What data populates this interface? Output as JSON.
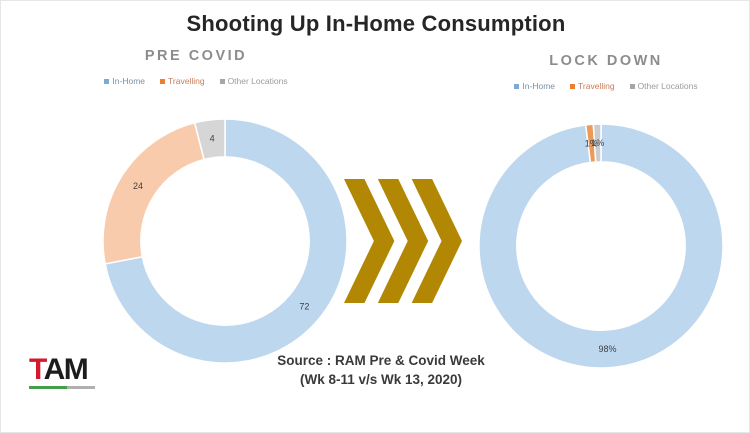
{
  "title": "Shooting Up In-Home Consumption",
  "source": {
    "line1": "Source : RAM Pre & Covid Week",
    "line2": "(Wk 8-11 v/s Wk 13, 2020)"
  },
  "logo": {
    "t": "T",
    "rest": "AM",
    "t_color": "#d31a2d",
    "rest_color": "#1c1c1c",
    "bar_color_1": "#43a047",
    "bar_color_2": "#b0b0b0"
  },
  "arrow": {
    "count": 3,
    "color": "#b28704"
  },
  "chart_data": [
    {
      "type": "pie",
      "subtype": "donut",
      "title": "PRE COVID",
      "categories": [
        "In-Home",
        "Travelling",
        "Other Locations"
      ],
      "values": [
        72,
        24,
        4
      ],
      "data_labels": [
        "72",
        "24",
        "4"
      ],
      "slice_colors": [
        "#bdd7ee",
        "#f8cbad",
        "#d6d6d6"
      ],
      "label_color": "#404040",
      "start_angle": 0,
      "direction": "clockwise",
      "donut_hole_ratio": 0.69,
      "legend_position": "top",
      "legend": [
        {
          "label": "In-Home",
          "marker_color": "#7fa8d4",
          "text_color": "#7b8fa5"
        },
        {
          "label": "Travelling",
          "marker_color": "#ed7d31",
          "text_color": "#c87c5b"
        },
        {
          "label": "Other Locations",
          "marker_color": "#a6a6a6",
          "text_color": "#9b9b9b"
        }
      ]
    },
    {
      "type": "pie",
      "subtype": "donut",
      "title": "LOCK DOWN",
      "categories": [
        "In-Home",
        "Travelling",
        "Other Locations"
      ],
      "values": [
        98,
        1,
        1
      ],
      "data_labels": [
        "98%",
        "1%",
        "1%"
      ],
      "slice_colors": [
        "#bdd7ee",
        "#ed9a56",
        "#c9ccd3"
      ],
      "label_color": "#404040",
      "start_angle": 0,
      "direction": "clockwise",
      "donut_hole_ratio": 0.69,
      "legend_position": "top",
      "legend": [
        {
          "label": "In-Home",
          "marker_color": "#7fa8d4",
          "text_color": "#7b8fa5"
        },
        {
          "label": "Travelling",
          "marker_color": "#ed7d31",
          "text_color": "#c87c5b"
        },
        {
          "label": "Other Locations",
          "marker_color": "#a6a6a6",
          "text_color": "#9b9b9b"
        }
      ]
    }
  ]
}
